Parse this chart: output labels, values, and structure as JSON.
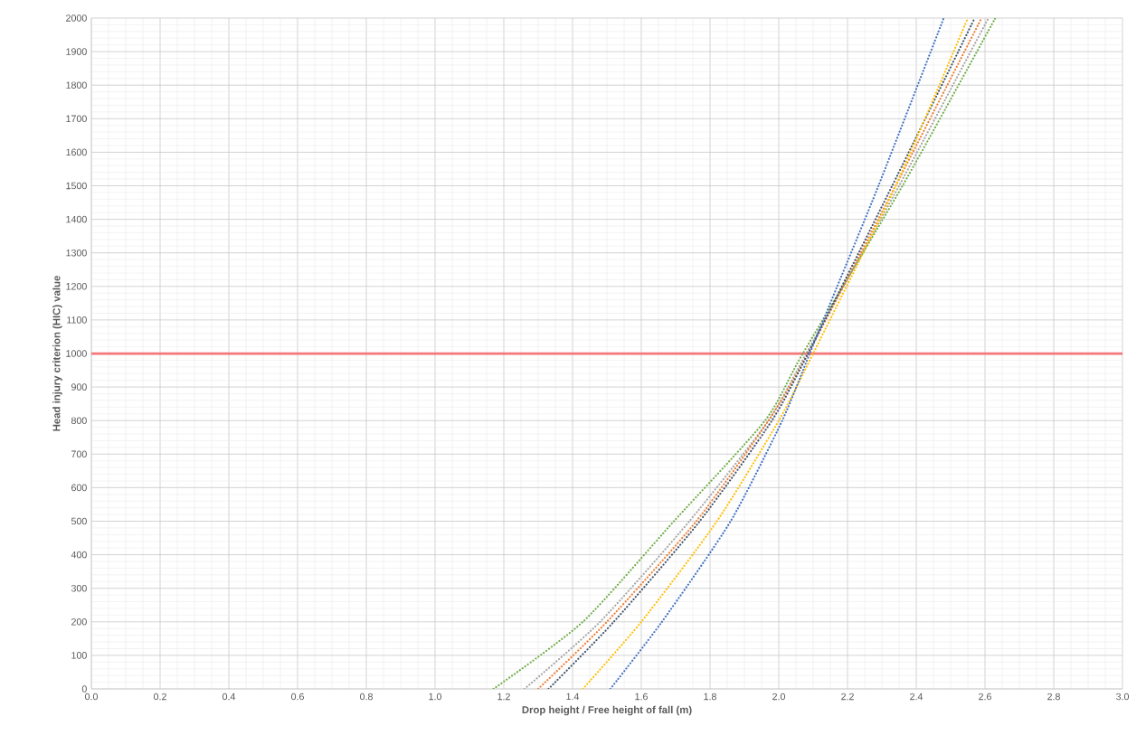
{
  "chart_data": {
    "type": "line",
    "xlabel": "Drop height / Free height of fall (m)",
    "ylabel": "Head injury criterion (HIC) value",
    "xlim": [
      0,
      3
    ],
    "ylim": [
      0,
      2000
    ],
    "xticks": [
      {
        "value": 0,
        "label": "0.0"
      },
      0.2,
      0.4,
      0.6,
      0.8,
      {
        "value": 1,
        "label": "1.0"
      },
      1.2,
      1.4,
      1.6,
      1.8,
      {
        "value": 2,
        "label": "2.0"
      },
      2.2,
      2.4,
      2.6,
      2.8,
      {
        "value": 3,
        "label": "3.0"
      }
    ],
    "yticks": [
      0,
      100,
      200,
      300,
      400,
      500,
      600,
      700,
      800,
      900,
      1000,
      1100,
      1200,
      1300,
      1400,
      1500,
      1600,
      1700,
      1800,
      1900,
      2000
    ],
    "grid": true,
    "marker": "none",
    "line_style": "dotted",
    "ref_lines": [
      {
        "axis": "y",
        "value": 1000,
        "color": "#f4777a",
        "line_style": "solid"
      }
    ],
    "series": [
      {
        "color": "#70ad47",
        "x": [
          1.17,
          1.43,
          1.695,
          1.96,
          2.07,
          2.36,
          2.63
        ],
        "values": [
          0,
          200,
          500,
          800,
          1000,
          1500,
          2000
        ]
      },
      {
        "color": "#a5a5a5",
        "x": [
          1.26,
          1.48,
          1.74,
          1.97,
          2.08,
          2.35,
          2.61
        ],
        "values": [
          0,
          200,
          500,
          800,
          1000,
          1500,
          2000
        ]
      },
      {
        "color": "#ed7d31",
        "x": [
          1.3,
          1.5,
          1.76,
          1.97,
          2.085,
          2.34,
          2.59
        ],
        "values": [
          0,
          200,
          500,
          800,
          1000,
          1500,
          2000
        ]
      },
      {
        "color": "#44546a",
        "x": [
          1.33,
          1.52,
          1.77,
          1.98,
          2.085,
          2.33,
          2.57
        ],
        "values": [
          0,
          200,
          500,
          800,
          1000,
          1500,
          2000
        ]
      },
      {
        "color": "#ffc000",
        "x": [
          1.43,
          1.6,
          1.82,
          2.0,
          2.1,
          2.34,
          2.55
        ],
        "values": [
          0,
          200,
          500,
          800,
          1000,
          1500,
          2000
        ]
      },
      {
        "color": "#4472c4",
        "x": [
          1.51,
          1.66,
          1.86,
          2.01,
          2.09,
          2.17,
          2.29,
          2.48
        ],
        "values": [
          0,
          200,
          500,
          800,
          1000,
          1200,
          1500,
          2000
        ]
      }
    ]
  }
}
